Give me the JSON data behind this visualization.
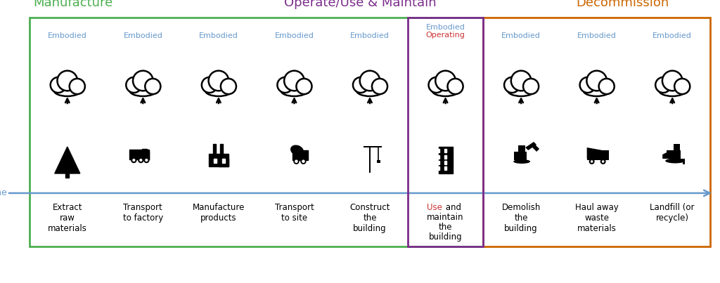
{
  "title_manufacture": "Manufacture",
  "title_operate": "Operate/Use & Maintain",
  "title_decommission": "Decommission",
  "color_manufacture": "#4CAF50",
  "color_operate": "#7B2D8B",
  "color_decommission": "#CC6600",
  "color_embodied_text": "#6699CC",
  "color_operating_text": "#CC3333",
  "color_use_text": "#CC3333",
  "color_time_arrow": "#6699CC",
  "bg_color": "#FFFFFF",
  "columns": [
    {
      "label": "Extract\nraw\nmaterials",
      "section": "manufacture"
    },
    {
      "label": "Transport\nto factory",
      "section": "manufacture"
    },
    {
      "label": "Manufacture\nproducts",
      "section": "manufacture"
    },
    {
      "label": "Transport\nto site",
      "section": "manufacture"
    },
    {
      "label": "Construct\nthe\nbuilding",
      "section": "manufacture"
    },
    {
      "label": "Use and\nmaintain\nthe\nbuilding",
      "section": "operate"
    },
    {
      "label": "Demolish\nthe\nbuilding",
      "section": "decommission"
    },
    {
      "label": "Haul away\nwaste\nmaterials",
      "section": "decommission"
    },
    {
      "label": "Landfill (or\nrecycle)",
      "section": "decommission"
    }
  ],
  "figsize": [
    10.24,
    4.03
  ],
  "dpi": 100
}
